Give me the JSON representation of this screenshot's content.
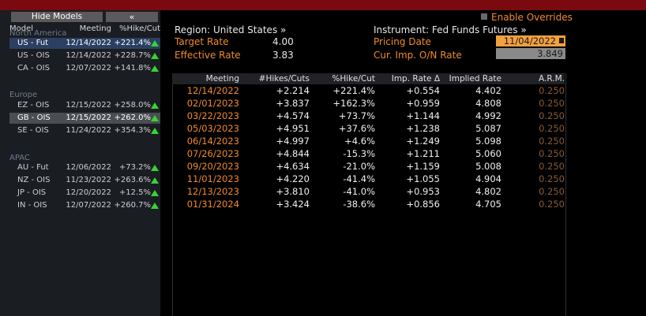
{
  "left": {
    "hide_label": "Hide Models",
    "collapse_label": "«",
    "headers": {
      "model": "Model",
      "meeting": "Meeting",
      "pct": "%Hike/Cut"
    },
    "groups": [
      {
        "name": "North America",
        "rows": [
          {
            "model": "US - Fut",
            "meeting": "12/14/2022",
            "pct": "+221.4%"
          },
          {
            "model": "US - OIS",
            "meeting": "12/14/2022",
            "pct": "+228.7%"
          },
          {
            "model": "CA - OIS",
            "meeting": "12/07/2022",
            "pct": "+141.8%"
          }
        ]
      },
      {
        "name": "Europe",
        "rows": [
          {
            "model": "EZ - OIS",
            "meeting": "12/15/2022",
            "pct": "+258.0%"
          },
          {
            "model": "GB - OIS",
            "meeting": "12/15/2022",
            "pct": "+262.0%"
          },
          {
            "model": "SE - OIS",
            "meeting": "11/24/2022",
            "pct": "+354.3%"
          }
        ]
      },
      {
        "name": "APAC",
        "rows": [
          {
            "model": "AU - Fut",
            "meeting": "12/06/2022",
            "pct": "+73.2%"
          },
          {
            "model": "NZ - OIS",
            "meeting": "11/23/2022",
            "pct": "+263.6%"
          },
          {
            "model": "JP - OIS",
            "meeting": "12/20/2022",
            "pct": "+12.5%"
          },
          {
            "model": "IN - OIS",
            "meeting": "12/07/2022",
            "pct": "+260.7%"
          }
        ]
      }
    ]
  },
  "header": {
    "region": "Region: United States »",
    "instrument": "Instrument: Fed Funds Futures »",
    "enable_overrides": "Enable Overrides",
    "target_rate_label": "Target Rate",
    "target_rate": "4.00",
    "effective_rate_label": "Effective Rate",
    "effective_rate": "3.83",
    "pricing_date_label": "Pricing Date",
    "pricing_date": "11/04/2022",
    "cur_imp_label": "Cur. Imp. O/N Rate",
    "cur_imp": "3.849"
  },
  "table": {
    "columns": [
      "Meeting",
      "#Hikes/Cuts",
      "%Hike/Cut",
      "Imp. Rate Δ",
      "Implied Rate",
      "A.R.M."
    ],
    "rows": [
      [
        "12/14/2022",
        "+2.214",
        "+221.4%",
        "+0.554",
        "4.402",
        "0.250"
      ],
      [
        "02/01/2023",
        "+3.837",
        "+162.3%",
        "+0.959",
        "4.808",
        "0.250"
      ],
      [
        "03/22/2023",
        "+4.574",
        "+73.7%",
        "+1.144",
        "4.992",
        "0.250"
      ],
      [
        "05/03/2023",
        "+4.951",
        "+37.6%",
        "+1.238",
        "5.087",
        "0.250"
      ],
      [
        "06/14/2023",
        "+4.997",
        "+4.6%",
        "+1.249",
        "5.098",
        "0.250"
      ],
      [
        "07/26/2023",
        "+4.844",
        "-15.3%",
        "+1.211",
        "5.060",
        "0.250"
      ],
      [
        "09/20/2023",
        "+4.634",
        "-21.0%",
        "+1.159",
        "5.008",
        "0.250"
      ],
      [
        "11/01/2023",
        "+4.220",
        "-41.4%",
        "+1.055",
        "4.904",
        "0.250"
      ],
      [
        "12/13/2023",
        "+3.810",
        "-41.0%",
        "+0.953",
        "4.802",
        "0.250"
      ],
      [
        "01/31/2024",
        "+3.424",
        "-38.6%",
        "+0.856",
        "4.705",
        "0.250"
      ]
    ]
  },
  "colors": {
    "accent_orange": "#f08a2c",
    "up_green": "#33d633",
    "selected_row": "#2b3f62",
    "top_bar": "#7a0a0f"
  }
}
